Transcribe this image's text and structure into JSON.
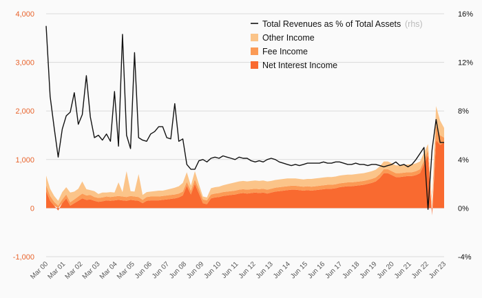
{
  "chart_data": {
    "type": "area",
    "title": "",
    "xlabel": "",
    "ylabel": "",
    "ylim_left": [
      -1000,
      4000
    ],
    "ylim_right": [
      -4,
      16
    ],
    "yticks_left": [
      -1000,
      0,
      1000,
      2000,
      3000,
      4000
    ],
    "ytick_labels_left": [
      "-1,000",
      "0",
      "1,000",
      "2,000",
      "3,000",
      "4,000"
    ],
    "yticks_right": [
      -4,
      0,
      4,
      8,
      12,
      16
    ],
    "ytick_labels_right": [
      "-4%",
      "0%",
      "4%",
      "8%",
      "12%",
      "16%"
    ],
    "xtick_labels": [
      "Mar 00",
      "Mar 01",
      "Mar 02",
      "Mar 03",
      "Mar 04",
      "Mar 05",
      "Jun 06",
      "Jun 07",
      "Jun 08",
      "Jun 09",
      "Jun 10",
      "Jun 11",
      "Jun 12",
      "Jun 13",
      "Jun 14",
      "Jun 15",
      "Jun 16",
      "Jun 17",
      "Jun 18",
      "Jun 19",
      "Jun 20",
      "Jun 21",
      "Jun 22",
      "Jun 23"
    ],
    "legend": {
      "line_label": "Total Revenues as % of Total Assets",
      "line_suffix": "(rhs)",
      "other_label": "Other Income",
      "fee_label": "Fee Income",
      "nii_label": "Net Interest Income"
    },
    "colors": {
      "nii": "#f96a30",
      "fee": "#fb9a55",
      "other": "#fbc489",
      "line": "#111111",
      "left_axis": "#e8622a",
      "grid": "#d9d9d9"
    },
    "series": [
      {
        "name": "Net Interest Income",
        "values": [
          350,
          150,
          50,
          -50,
          100,
          200,
          50,
          100,
          150,
          200,
          170,
          180,
          150,
          130,
          140,
          160,
          150,
          160,
          170,
          160,
          150,
          170,
          160,
          150,
          100,
          150,
          160,
          160,
          160,
          170,
          180,
          190,
          200,
          220,
          260,
          460,
          280,
          500,
          300,
          100,
          80,
          200,
          220,
          230,
          250,
          260,
          270,
          280,
          300,
          310,
          300,
          310,
          320,
          310,
          320,
          300,
          320,
          340,
          350,
          360,
          370,
          380,
          380,
          370,
          360,
          370,
          360,
          370,
          380,
          390,
          400,
          400,
          410,
          430,
          440,
          450,
          450,
          460,
          470,
          480,
          500,
          520,
          550,
          620,
          720,
          720,
          680,
          640,
          640,
          650,
          660,
          660,
          680,
          720,
          900,
          1100,
          -150,
          1400,
          1300,
          1350
        ]
      },
      {
        "name": "Fee Income",
        "values": [
          120,
          100,
          80,
          50,
          80,
          80,
          70,
          80,
          90,
          100,
          90,
          90,
          80,
          80,
          80,
          80,
          80,
          80,
          80,
          80,
          80,
          80,
          80,
          80,
          70,
          80,
          80,
          80,
          80,
          80,
          80,
          80,
          80,
          80,
          80,
          80,
          80,
          90,
          90,
          80,
          80,
          80,
          80,
          80,
          80,
          80,
          80,
          80,
          80,
          80,
          80,
          80,
          80,
          80,
          80,
          80,
          80,
          80,
          80,
          80,
          80,
          80,
          80,
          80,
          80,
          80,
          80,
          80,
          80,
          80,
          80,
          80,
          80,
          80,
          80,
          80,
          80,
          80,
          80,
          80,
          80,
          80,
          80,
          80,
          80,
          80,
          80,
          80,
          80,
          80,
          80,
          80,
          80,
          80,
          80,
          100,
          50,
          300,
          200,
          100
        ]
      },
      {
        "name": "Other Income",
        "values": [
          200,
          150,
          120,
          100,
          150,
          150,
          200,
          160,
          160,
          250,
          130,
          100,
          120,
          80,
          100,
          80,
          100,
          80,
          280,
          90,
          530,
          100,
          100,
          470,
          100,
          100,
          100,
          110,
          120,
          110,
          120,
          130,
          140,
          150,
          180,
          200,
          100,
          170,
          100,
          60,
          60,
          130,
          130,
          130,
          140,
          150,
          160,
          170,
          170,
          170,
          170,
          170,
          170,
          170,
          170,
          170,
          160,
          160,
          160,
          160,
          160,
          150,
          150,
          150,
          150,
          150,
          160,
          160,
          160,
          160,
          160,
          160,
          160,
          160,
          160,
          160,
          160,
          160,
          160,
          160,
          160,
          160,
          160,
          160,
          160,
          160,
          160,
          160,
          160,
          160,
          160,
          160,
          160,
          160,
          160,
          120,
          60,
          400,
          300,
          200
        ]
      },
      {
        "name": "Total Revenues as % of Total Assets",
        "axis": "right",
        "values": [
          15.0,
          9.2,
          6.6,
          4.2,
          6.5,
          7.6,
          7.9,
          9.5,
          6.9,
          7.7,
          10.9,
          7.5,
          5.8,
          6.0,
          5.6,
          6.1,
          5.5,
          9.6,
          5.1,
          14.3,
          6.0,
          4.9,
          12.8,
          5.8,
          5.6,
          5.5,
          6.1,
          6.3,
          6.7,
          6.7,
          5.8,
          5.7,
          8.6,
          5.5,
          5.7,
          3.6,
          3.2,
          3.2,
          3.9,
          4.0,
          3.8,
          4.1,
          4.2,
          4.1,
          4.3,
          4.2,
          4.1,
          4.0,
          4.2,
          4.1,
          4.1,
          3.9,
          3.8,
          3.9,
          3.8,
          4.0,
          4.1,
          4.0,
          3.8,
          3.7,
          3.6,
          3.5,
          3.6,
          3.5,
          3.6,
          3.7,
          3.7,
          3.7,
          3.7,
          3.8,
          3.7,
          3.7,
          3.8,
          3.8,
          3.7,
          3.6,
          3.6,
          3.7,
          3.6,
          3.6,
          3.5,
          3.6,
          3.6,
          3.5,
          3.4,
          3.5,
          3.6,
          3.8,
          3.5,
          3.6,
          3.4,
          3.6,
          4.0,
          4.5,
          5.0,
          -0.1,
          4.8,
          7.3,
          5.4,
          5.4
        ]
      }
    ]
  }
}
